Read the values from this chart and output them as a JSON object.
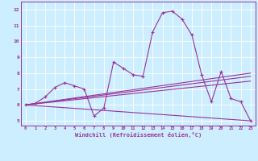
{
  "xlabel": "Windchill (Refroidissement éolien,°C)",
  "background_color": "#cceeff",
  "line_color": "#993399",
  "grid_color": "#aaddcc",
  "xlim": [
    -0.5,
    23.5
  ],
  "ylim": [
    4.7,
    12.5
  ],
  "xticks": [
    0,
    1,
    2,
    3,
    4,
    5,
    6,
    7,
    8,
    9,
    10,
    11,
    12,
    13,
    14,
    15,
    16,
    17,
    18,
    19,
    20,
    21,
    22,
    23
  ],
  "yticks": [
    5,
    6,
    7,
    8,
    9,
    10,
    11,
    12
  ],
  "line1_x": [
    0,
    1,
    2,
    3,
    4,
    5,
    6,
    7,
    8,
    9,
    10,
    11,
    12,
    13,
    14,
    15,
    16,
    17,
    18,
    19,
    20,
    21,
    22,
    23
  ],
  "line1_y": [
    6.0,
    6.1,
    6.5,
    7.1,
    7.4,
    7.2,
    7.0,
    5.3,
    5.8,
    8.7,
    8.3,
    7.9,
    7.8,
    10.6,
    11.8,
    11.9,
    11.4,
    10.4,
    7.9,
    6.2,
    8.1,
    6.4,
    6.2,
    5.0
  ],
  "line2_x": [
    0,
    23
  ],
  "line2_y": [
    6.0,
    5.0
  ],
  "line3_x": [
    0,
    23
  ],
  "line3_y": [
    6.0,
    7.5
  ],
  "line4_x": [
    0,
    23
  ],
  "line4_y": [
    6.0,
    8.0
  ],
  "line5_x": [
    0,
    23
  ],
  "line5_y": [
    6.0,
    7.8
  ]
}
